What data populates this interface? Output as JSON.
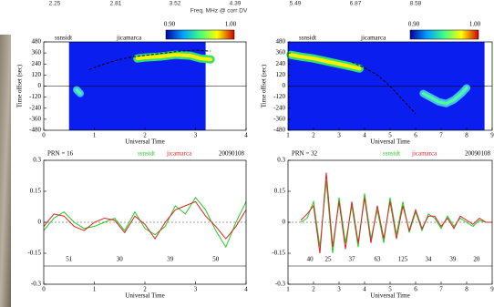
{
  "header": {
    "label": "Freq. MHz @ corr DV",
    "ticks": [
      2.25,
      2.81,
      3.52,
      4.39,
      5.49,
      6.87,
      8.58
    ]
  },
  "chart_data": [
    {
      "type": "heatmap",
      "xlabel": "Universal Time",
      "ylabel": "Time offset (sec)",
      "annotations": [
        "ssnsidt",
        "jicamarca"
      ],
      "xlim": [
        0,
        4
      ],
      "ylim": [
        -480,
        480
      ],
      "xticks": [
        0,
        1,
        2,
        3,
        4
      ],
      "yticks": [
        480,
        360,
        240,
        120,
        0,
        -120,
        -240,
        -360,
        -480
      ],
      "colorbar": {
        "ticks": [
          {
            "value": 0.9,
            "label": "0.90"
          },
          {
            "value": 1.0,
            "label": "1.00"
          }
        ]
      },
      "coverage_x": [
        0.5,
        3.2
      ],
      "trace": {
        "x": [
          0.9,
          1.2,
          1.5,
          1.8,
          2.1,
          2.4,
          2.7,
          3.0,
          3.3
        ],
        "y": [
          180,
          240,
          290,
          320,
          340,
          360,
          380,
          390,
          380
        ]
      },
      "band": {
        "x": [
          1.85,
          2.0,
          2.3,
          2.6,
          2.9,
          3.1,
          3.3
        ],
        "y": [
          300,
          310,
          320,
          340,
          330,
          300,
          290
        ]
      },
      "blob": {
        "x": [
          0.65,
          0.72
        ],
        "y": [
          -40,
          -80
        ]
      }
    },
    {
      "type": "heatmap",
      "xlabel": "Universal Time",
      "ylabel": "Time offset (sec)",
      "annotations": [
        "ssnsidt",
        "jicamarca"
      ],
      "xlim": [
        1,
        9
      ],
      "ylim": [
        -480,
        480
      ],
      "xticks": [
        1,
        2,
        3,
        4,
        5,
        6,
        7,
        8,
        9
      ],
      "yticks": [
        480,
        360,
        240,
        120,
        0,
        -120,
        -240,
        -360,
        -480
      ],
      "colorbar": {
        "ticks": [
          {
            "value": 0.9,
            "label": "0.90"
          },
          {
            "value": 1.0,
            "label": "1.00"
          }
        ]
      },
      "coverage_x": [
        1,
        8.7
      ],
      "trace": {
        "x": [
          3.5,
          4.0,
          4.5,
          5.0,
          5.5,
          6.0
        ],
        "y": [
          260,
          200,
          120,
          0,
          -150,
          -300
        ]
      },
      "band": {
        "x": [
          1.1,
          1.5,
          2.0,
          2.5,
          3.0,
          3.5,
          3.8
        ],
        "y": [
          340,
          320,
          300,
          270,
          240,
          210,
          190
        ]
      },
      "blob": {
        "x": [
          6.3,
          6.9,
          7.2,
          7.5,
          7.8,
          8.0
        ],
        "y": [
          -80,
          -170,
          -190,
          -150,
          -80,
          -20
        ]
      }
    },
    {
      "type": "line",
      "title": "PRN = 16",
      "date": "20090108",
      "xlabel": "Universal Time",
      "xlim": [
        0,
        4
      ],
      "ylim": [
        -0.3,
        0.3
      ],
      "xticks": [
        0,
        1,
        2,
        3,
        4
      ],
      "yticks": [
        0.3,
        0.15,
        0,
        -0.15,
        -0.3
      ],
      "x": [
        0,
        0.2,
        0.4,
        0.6,
        0.8,
        1.0,
        1.2,
        1.4,
        1.6,
        1.8,
        2.0,
        2.2,
        2.4,
        2.6,
        2.8,
        3.0,
        3.2,
        3.4,
        3.6,
        3.8,
        4.0
      ],
      "series": [
        {
          "name": "ssnsidt",
          "color": "#22cc22",
          "values": [
            -0.04,
            0.02,
            0.05,
            0,
            -0.03,
            -0.02,
            0,
            0.02,
            -0.04,
            0.05,
            -0.03,
            -0.06,
            -0.02,
            0.08,
            0.04,
            0.12,
            0.06,
            -0.04,
            -0.12,
            0,
            0.1
          ]
        },
        {
          "name": "jicamarca",
          "color": "#dd2222",
          "values": [
            -0.02,
            0.04,
            0.03,
            -0.02,
            -0.04,
            0,
            0.02,
            0.01,
            -0.05,
            0.03,
            -0.01,
            -0.08,
            0,
            0.06,
            0.08,
            0.1,
            0.03,
            -0.02,
            -0.08,
            -0.02,
            0.06
          ]
        }
      ],
      "counts": {
        "x": [
          0.5,
          1.5,
          2.5,
          3.4
        ],
        "values": [
          51,
          30,
          39,
          50
        ]
      }
    },
    {
      "type": "line",
      "title": "PRN = 32",
      "date": "20090108",
      "xlabel": "Universal Time",
      "xlim": [
        1,
        9
      ],
      "ylim": [
        -0.3,
        0.3
      ],
      "xticks": [
        1,
        2,
        3,
        4,
        5,
        6,
        7,
        8,
        9
      ],
      "yticks": [
        0.3,
        0.15,
        0,
        -0.15,
        -0.3
      ],
      "x": [
        1.5,
        1.75,
        2.0,
        2.25,
        2.5,
        2.75,
        3.0,
        3.25,
        3.5,
        3.75,
        4.0,
        4.25,
        4.5,
        4.75,
        5.0,
        5.25,
        5.5,
        5.75,
        6.0,
        6.25,
        6.5,
        6.75,
        7.0,
        7.25,
        7.5,
        7.75,
        8.0,
        8.25,
        8.5,
        8.75,
        9.0
      ],
      "series": [
        {
          "name": "ssnsidt",
          "color": "#22cc22",
          "values": [
            0,
            0.02,
            0.1,
            -0.12,
            0.2,
            -0.15,
            0.12,
            -0.1,
            0.08,
            -0.12,
            0.14,
            -0.08,
            0.06,
            -0.1,
            0.12,
            -0.06,
            0.1,
            -0.05,
            0.05,
            -0.04,
            0.04,
            0.02,
            -0.03,
            0.03,
            -0.02,
            0.02,
            0,
            -0.02,
            0.01,
            0,
            0
          ]
        },
        {
          "name": "jicamarca",
          "color": "#dd2222",
          "values": [
            0.01,
            0.04,
            0.08,
            -0.15,
            0.24,
            -0.12,
            0.1,
            -0.13,
            0.1,
            -0.1,
            0.12,
            -0.1,
            0.08,
            -0.08,
            0.1,
            -0.08,
            0.08,
            -0.04,
            0.06,
            -0.03,
            0.03,
            0.03,
            -0.02,
            0.02,
            -0.03,
            0.03,
            0.01,
            -0.01,
            0.02,
            0,
            0
          ]
        }
      ],
      "counts": {
        "x": [
          1.86,
          2.57,
          3.5,
          4.5,
          5.5,
          6.5,
          7.46,
          8.39
        ],
        "values": [
          40,
          25,
          37,
          63,
          125,
          34,
          39,
          20
        ]
      }
    }
  ]
}
